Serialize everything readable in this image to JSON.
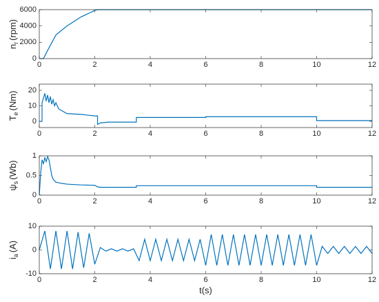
{
  "chart_data": [
    {
      "type": "line",
      "ylabel": {
        "symbol": "n",
        "subscript": "r",
        "unit": "(rpm)"
      },
      "x": [
        0,
        0.15,
        0.3,
        0.6,
        1.0,
        1.5,
        2.0,
        2.1,
        12
      ],
      "series": [
        {
          "color": "#0072bd",
          "values": [
            0,
            0,
            1000,
            2900,
            4000,
            5100,
            5900,
            6000,
            6000
          ]
        }
      ],
      "xlim": [
        0,
        12
      ],
      "xticks": [
        0,
        2,
        4,
        6,
        8,
        10,
        12
      ],
      "ylim": [
        0,
        6000
      ],
      "yticks": [
        0,
        2000,
        4000,
        6000
      ]
    },
    {
      "type": "line",
      "ylabel": {
        "symbol": "T",
        "subscript": "e",
        "unit": "(Nm)"
      },
      "x": [
        0,
        0.1,
        0.1,
        0.2,
        0.25,
        0.3,
        0.35,
        0.4,
        0.45,
        0.5,
        0.55,
        0.6,
        0.7,
        0.8,
        1.0,
        1.5,
        2.0,
        2.1,
        2.1,
        2.2,
        2.5,
        3.5,
        3.5,
        6,
        6,
        10,
        10,
        12
      ],
      "series": [
        {
          "color": "#0072bd",
          "values": [
            0,
            0,
            12,
            18,
            13,
            17,
            12,
            16,
            11,
            14,
            10,
            12,
            8,
            7,
            5,
            4.5,
            3.5,
            3.5,
            -2,
            -1,
            -0.5,
            -0.5,
            2.5,
            2.5,
            3,
            3,
            0.5,
            0.5
          ]
        }
      ],
      "xlim": [
        0,
        12
      ],
      "xticks": [
        0,
        2,
        4,
        6,
        8,
        10,
        12
      ],
      "ylim": [
        -4,
        24
      ],
      "yticks": [
        0,
        10,
        20
      ]
    },
    {
      "type": "line",
      "ylabel": {
        "symbol": "ψ",
        "subscript": "s",
        "unit": "(Wb)"
      },
      "x": [
        0,
        0.05,
        0.1,
        0.15,
        0.2,
        0.25,
        0.3,
        0.35,
        0.4,
        0.45,
        0.5,
        0.6,
        0.8,
        1.0,
        1.5,
        2.0,
        2.1,
        2.2,
        3.5,
        3.5,
        6,
        10,
        10,
        12
      ],
      "series": [
        {
          "color": "#0072bd",
          "values": [
            0,
            0.55,
            0.9,
            0.8,
            0.95,
            0.85,
            0.98,
            0.9,
            0.7,
            0.5,
            0.4,
            0.33,
            0.3,
            0.28,
            0.26,
            0.25,
            0.21,
            0.2,
            0.2,
            0.24,
            0.24,
            0.24,
            0.2,
            0.2
          ]
        }
      ],
      "xlim": [
        0,
        12
      ],
      "xticks": [
        0,
        2,
        4,
        6,
        8,
        10,
        12
      ],
      "ylim": [
        0,
        1
      ],
      "yticks": [
        0,
        0.5,
        1
      ]
    },
    {
      "type": "line",
      "ylabel": {
        "symbol": "i",
        "subscript": "a",
        "unit": "(A)"
      },
      "xlabel": "t(s)",
      "x": [
        0,
        0.2,
        0.4,
        0.6,
        0.8,
        1.0,
        1.2,
        1.4,
        1.6,
        1.8,
        2.0,
        2.2,
        2.4,
        2.6,
        2.8,
        3.0,
        3.2,
        3.4,
        3.6,
        3.8,
        4.0,
        4.2,
        4.4,
        4.6,
        4.8,
        5.0,
        5.2,
        5.4,
        5.6,
        5.8,
        6.0,
        6.2,
        6.4,
        6.6,
        6.8,
        7.0,
        7.2,
        7.4,
        7.6,
        7.8,
        8.0,
        8.2,
        8.4,
        8.6,
        8.8,
        9.0,
        9.2,
        9.4,
        9.6,
        9.8,
        10.0,
        10.2,
        10.4,
        10.6,
        10.8,
        11.0,
        11.2,
        11.4,
        11.6,
        11.8,
        12.0
      ],
      "series": [
        {
          "color": "#0072bd",
          "values": [
            0,
            8,
            -8,
            8,
            -8,
            8,
            -8,
            7.5,
            -7.5,
            7,
            -6,
            1,
            -0.5,
            0.5,
            -0.5,
            0.5,
            -0.5,
            0.5,
            -4.5,
            4.5,
            -4.5,
            4.5,
            -4.5,
            4.5,
            -4.5,
            4.5,
            -4.5,
            4.5,
            -4.5,
            4.5,
            -6.5,
            6.5,
            -6.5,
            6.5,
            -6.5,
            6.5,
            -6.5,
            6.5,
            -6.5,
            6.5,
            -6.5,
            6.5,
            -6.5,
            6.5,
            -6.5,
            6.5,
            -6.5,
            6.5,
            -6.5,
            6.5,
            -6.5,
            1.5,
            -1.5,
            1.5,
            -1.5,
            1.5,
            -1.5,
            1.5,
            -1.5,
            1.5,
            -1.5
          ]
        }
      ],
      "xlim": [
        0,
        12
      ],
      "xticks": [
        0,
        2,
        4,
        6,
        8,
        10,
        12
      ],
      "ylim": [
        -10,
        10
      ],
      "yticks": [
        -10,
        0,
        10
      ]
    }
  ]
}
